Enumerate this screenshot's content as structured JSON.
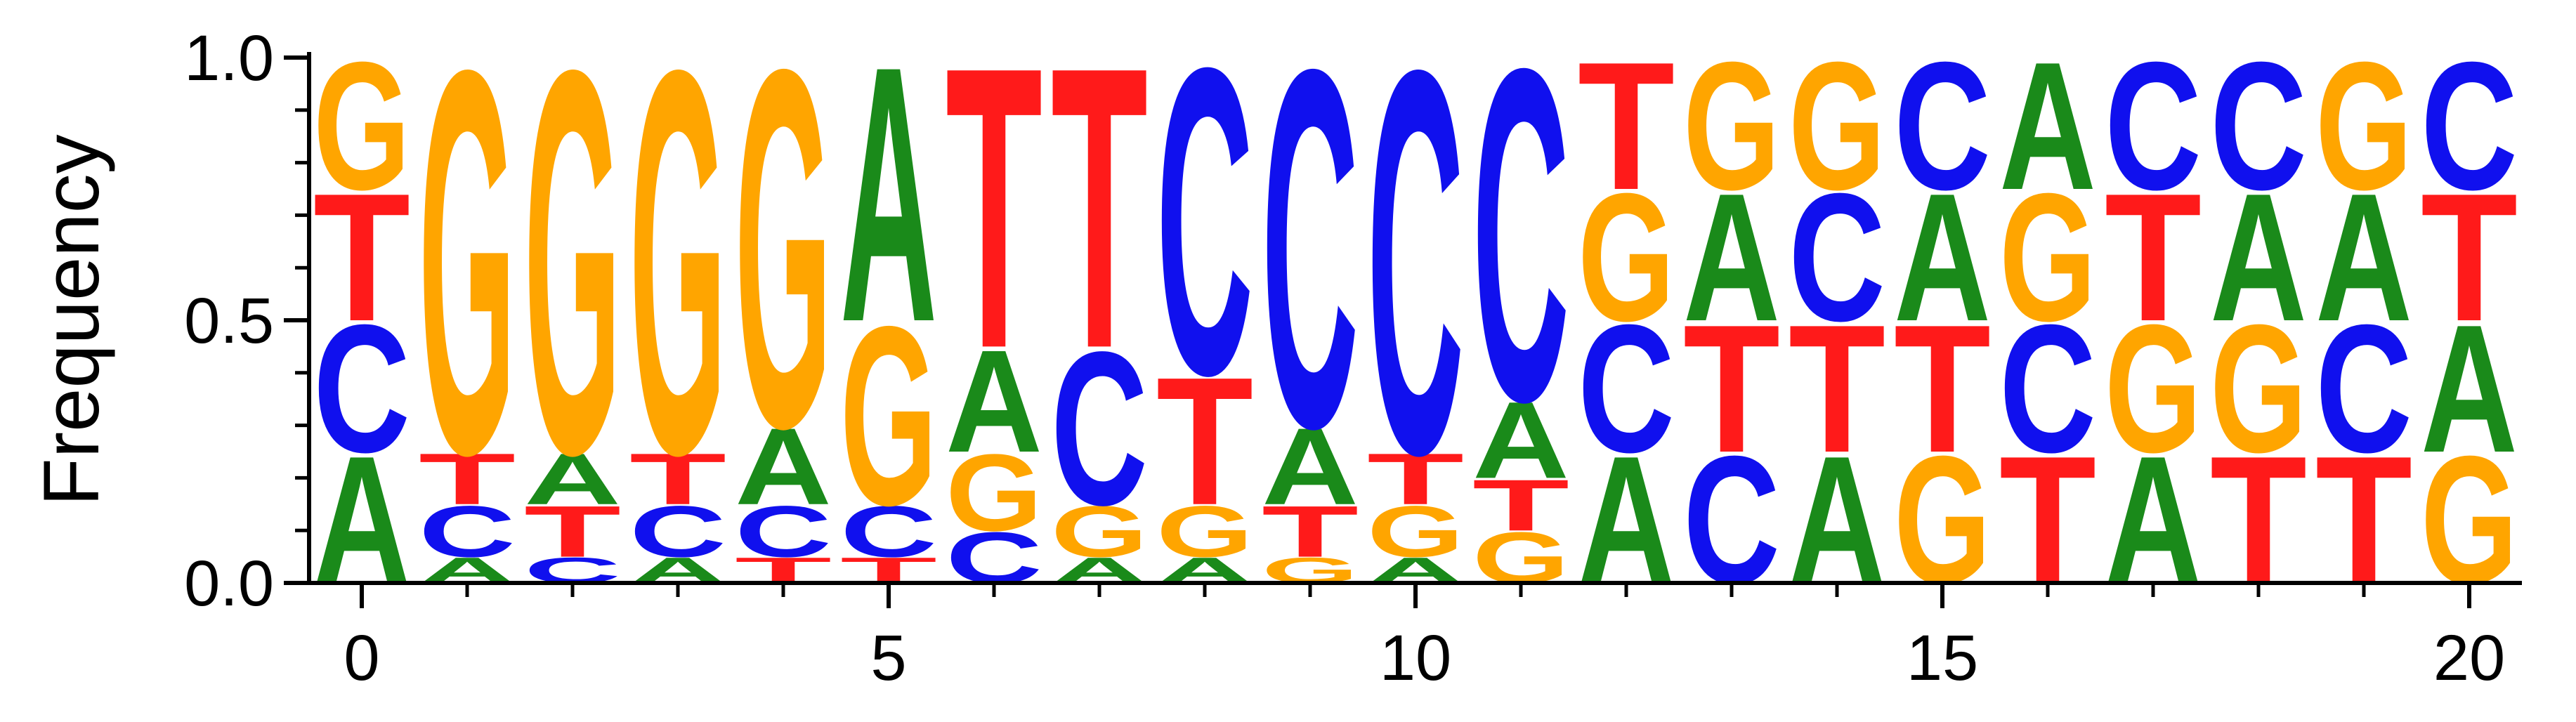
{
  "chart_data": {
    "type": "sequence-logo",
    "ylabel": "Frequency",
    "xlabel": "",
    "ylim": [
      0,
      1.0
    ],
    "xlim": [
      -0.5,
      20.5
    ],
    "x_ticks": [
      0,
      5,
      10,
      15,
      20
    ],
    "x_tick_labels": [
      "0",
      "5",
      "10",
      "15",
      "20"
    ],
    "y_ticks": [
      0.0,
      0.5,
      1.0
    ],
    "y_tick_labels": [
      "0.0",
      "0.5",
      "1.0"
    ],
    "y_minor_ticks": [
      0.1,
      0.2,
      0.3,
      0.4,
      0.6,
      0.7,
      0.8,
      0.9
    ],
    "colors": {
      "A": "#1a8a1a",
      "C": "#1010ee",
      "G": "#ffa500",
      "T": "#ff1a1a"
    },
    "positions": [
      {
        "x": 0,
        "stack": [
          {
            "letter": "A",
            "value": 0.25
          },
          {
            "letter": "C",
            "value": 0.25
          },
          {
            "letter": "T",
            "value": 0.25
          },
          {
            "letter": "G",
            "value": 0.25
          }
        ]
      },
      {
        "x": 1,
        "stack": [
          {
            "letter": "A",
            "value": 0.05
          },
          {
            "letter": "C",
            "value": 0.1
          },
          {
            "letter": "T",
            "value": 0.1
          },
          {
            "letter": "G",
            "value": 0.75
          }
        ]
      },
      {
        "x": 2,
        "stack": [
          {
            "letter": "C",
            "value": 0.05
          },
          {
            "letter": "T",
            "value": 0.1
          },
          {
            "letter": "A",
            "value": 0.1
          },
          {
            "letter": "G",
            "value": 0.75
          }
        ]
      },
      {
        "x": 3,
        "stack": [
          {
            "letter": "A",
            "value": 0.05
          },
          {
            "letter": "C",
            "value": 0.1
          },
          {
            "letter": "T",
            "value": 0.1
          },
          {
            "letter": "G",
            "value": 0.75
          }
        ]
      },
      {
        "x": 4,
        "stack": [
          {
            "letter": "T",
            "value": 0.05
          },
          {
            "letter": "C",
            "value": 0.1
          },
          {
            "letter": "A",
            "value": 0.15
          },
          {
            "letter": "G",
            "value": 0.7
          }
        ]
      },
      {
        "x": 5,
        "stack": [
          {
            "letter": "T",
            "value": 0.05
          },
          {
            "letter": "C",
            "value": 0.1
          },
          {
            "letter": "G",
            "value": 0.35
          },
          {
            "letter": "A",
            "value": 0.5
          }
        ]
      },
      {
        "x": 6,
        "stack": [
          {
            "letter": "C",
            "value": 0.1
          },
          {
            "letter": "G",
            "value": 0.15
          },
          {
            "letter": "A",
            "value": 0.2
          },
          {
            "letter": "T",
            "value": 0.55
          }
        ]
      },
      {
        "x": 7,
        "stack": [
          {
            "letter": "A",
            "value": 0.05
          },
          {
            "letter": "G",
            "value": 0.1
          },
          {
            "letter": "C",
            "value": 0.3
          },
          {
            "letter": "T",
            "value": 0.55
          }
        ]
      },
      {
        "x": 8,
        "stack": [
          {
            "letter": "A",
            "value": 0.05
          },
          {
            "letter": "G",
            "value": 0.1
          },
          {
            "letter": "T",
            "value": 0.25
          },
          {
            "letter": "C",
            "value": 0.6
          }
        ]
      },
      {
        "x": 9,
        "stack": [
          {
            "letter": "G",
            "value": 0.05
          },
          {
            "letter": "T",
            "value": 0.1
          },
          {
            "letter": "A",
            "value": 0.15
          },
          {
            "letter": "C",
            "value": 0.7
          }
        ]
      },
      {
        "x": 10,
        "stack": [
          {
            "letter": "A",
            "value": 0.05
          },
          {
            "letter": "G",
            "value": 0.1
          },
          {
            "letter": "T",
            "value": 0.1
          },
          {
            "letter": "C",
            "value": 0.75
          }
        ]
      },
      {
        "x": 11,
        "stack": [
          {
            "letter": "G",
            "value": 0.1
          },
          {
            "letter": "T",
            "value": 0.1
          },
          {
            "letter": "A",
            "value": 0.15
          },
          {
            "letter": "C",
            "value": 0.65
          }
        ]
      },
      {
        "x": 12,
        "stack": [
          {
            "letter": "A",
            "value": 0.25
          },
          {
            "letter": "C",
            "value": 0.25
          },
          {
            "letter": "G",
            "value": 0.25
          },
          {
            "letter": "T",
            "value": 0.25
          }
        ]
      },
      {
        "x": 13,
        "stack": [
          {
            "letter": "C",
            "value": 0.25
          },
          {
            "letter": "T",
            "value": 0.25
          },
          {
            "letter": "A",
            "value": 0.25
          },
          {
            "letter": "G",
            "value": 0.25
          }
        ]
      },
      {
        "x": 14,
        "stack": [
          {
            "letter": "A",
            "value": 0.25
          },
          {
            "letter": "T",
            "value": 0.25
          },
          {
            "letter": "C",
            "value": 0.25
          },
          {
            "letter": "G",
            "value": 0.25
          }
        ]
      },
      {
        "x": 15,
        "stack": [
          {
            "letter": "G",
            "value": 0.25
          },
          {
            "letter": "T",
            "value": 0.25
          },
          {
            "letter": "A",
            "value": 0.25
          },
          {
            "letter": "C",
            "value": 0.25
          }
        ]
      },
      {
        "x": 16,
        "stack": [
          {
            "letter": "T",
            "value": 0.25
          },
          {
            "letter": "C",
            "value": 0.25
          },
          {
            "letter": "G",
            "value": 0.25
          },
          {
            "letter": "A",
            "value": 0.25
          }
        ]
      },
      {
        "x": 17,
        "stack": [
          {
            "letter": "A",
            "value": 0.25
          },
          {
            "letter": "G",
            "value": 0.25
          },
          {
            "letter": "T",
            "value": 0.25
          },
          {
            "letter": "C",
            "value": 0.25
          }
        ]
      },
      {
        "x": 18,
        "stack": [
          {
            "letter": "T",
            "value": 0.25
          },
          {
            "letter": "G",
            "value": 0.25
          },
          {
            "letter": "A",
            "value": 0.25
          },
          {
            "letter": "C",
            "value": 0.25
          }
        ]
      },
      {
        "x": 19,
        "stack": [
          {
            "letter": "T",
            "value": 0.25
          },
          {
            "letter": "C",
            "value": 0.25
          },
          {
            "letter": "A",
            "value": 0.25
          },
          {
            "letter": "G",
            "value": 0.25
          }
        ]
      },
      {
        "x": 20,
        "stack": [
          {
            "letter": "G",
            "value": 0.25
          },
          {
            "letter": "A",
            "value": 0.25
          },
          {
            "letter": "T",
            "value": 0.25
          },
          {
            "letter": "C",
            "value": 0.25
          }
        ]
      }
    ]
  }
}
